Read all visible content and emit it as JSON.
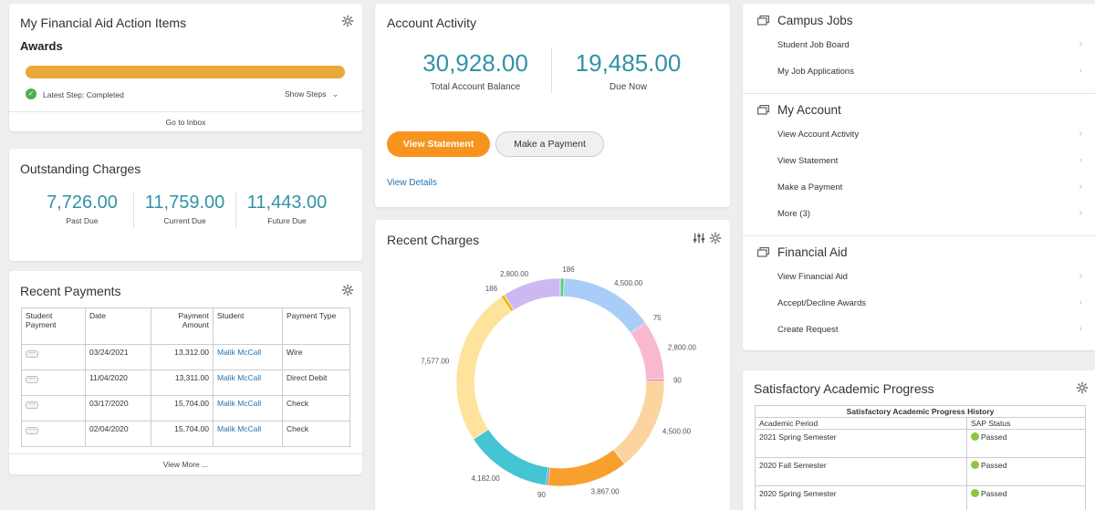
{
  "action_items": {
    "title": "My Financial Aid Action Items",
    "subtitle": "Awards",
    "progress": 1.0,
    "progress_color": "#e8a938",
    "status": "Latest Step: Completed",
    "show_steps": "Show Steps",
    "go_inbox": "Go to Inbox"
  },
  "outstanding": {
    "title": "Outstanding Charges",
    "items": [
      {
        "value": "7,726.00",
        "label": "Past Due"
      },
      {
        "value": "11,759.00",
        "label": "Current Due"
      },
      {
        "value": "11,443.00",
        "label": "Future Due"
      }
    ]
  },
  "payments": {
    "title": "Recent Payments",
    "headers": [
      "Student Payment",
      "Date",
      "Payment Amount",
      "Student",
      "Payment Type"
    ],
    "rows": [
      {
        "date": "03/24/2021",
        "amount": "13,312.00",
        "student": "Malik McCall",
        "type": "Wire"
      },
      {
        "date": "11/04/2020",
        "amount": "13,311.00",
        "student": "Malik McCall",
        "type": "Direct Debit"
      },
      {
        "date": "03/17/2020",
        "amount": "15,704.00",
        "student": "Malik McCall",
        "type": "Check"
      },
      {
        "date": "02/04/2020",
        "amount": "15,704.00",
        "student": "Malik McCall",
        "type": "Check"
      }
    ],
    "view_more": "View More ..."
  },
  "account": {
    "title": "Account Activity",
    "balance": "30,928.00",
    "balance_label": "Total Account Balance",
    "due": "19,485.00",
    "due_label": "Due Now",
    "view_statement": "View Statement",
    "make_payment": "Make a Payment",
    "view_details": "View Details",
    "accent": "#f7941d"
  },
  "charges": {
    "title": "Recent Charges"
  },
  "chart_data": {
    "type": "pie",
    "title": "Recent Charges",
    "donut": true,
    "slices": [
      {
        "label": "186",
        "value": 186,
        "color": "#5fc98a"
      },
      {
        "label": "4,500.00",
        "value": 4500,
        "color": "#a8cdf7"
      },
      {
        "label": "75",
        "value": 75,
        "color": "#d88fcf"
      },
      {
        "label": "2,800.00",
        "value": 2800,
        "color": "#f8b8d0"
      },
      {
        "label": "90",
        "value": 90,
        "color": "#e36a9a"
      },
      {
        "label": "4,500.00",
        "value": 4500,
        "color": "#fbd4a0"
      },
      {
        "label": "3,867.00",
        "value": 3867,
        "color": "#f7a02e"
      },
      {
        "label": "90",
        "value": 90,
        "color": "#6e7f8f"
      },
      {
        "label": "4,182.00",
        "value": 4182,
        "color": "#45c4d3"
      },
      {
        "label": "7,577.00",
        "value": 7577,
        "color": "#fde39c"
      },
      {
        "label": "186",
        "value": 186,
        "color": "#f5b914"
      },
      {
        "label": "2,800.00",
        "value": 2800,
        "color": "#cdb9f2"
      }
    ]
  },
  "sidebar": {
    "sections": [
      {
        "title": "Campus Jobs",
        "items": [
          "Student Job Board",
          "My Job Applications"
        ]
      },
      {
        "title": "My Account",
        "items": [
          "View Account Activity",
          "View Statement",
          "Make a Payment",
          "More (3)"
        ]
      },
      {
        "title": "Financial Aid",
        "items": [
          "View Financial Aid",
          "Accept/Decline Awards",
          "Create Request"
        ]
      }
    ]
  },
  "sap": {
    "title": "Satisfactory Academic Progress",
    "table_title": "Satisfactory Academic Progress History",
    "col_period": "Academic Period",
    "col_status": "SAP Status",
    "rows": [
      {
        "period": "2021 Spring Semester",
        "status": "Passed"
      },
      {
        "period": "2020 Fall Semester",
        "status": "Passed"
      },
      {
        "period": "2020 Spring Semester",
        "status": "Passed"
      }
    ]
  }
}
